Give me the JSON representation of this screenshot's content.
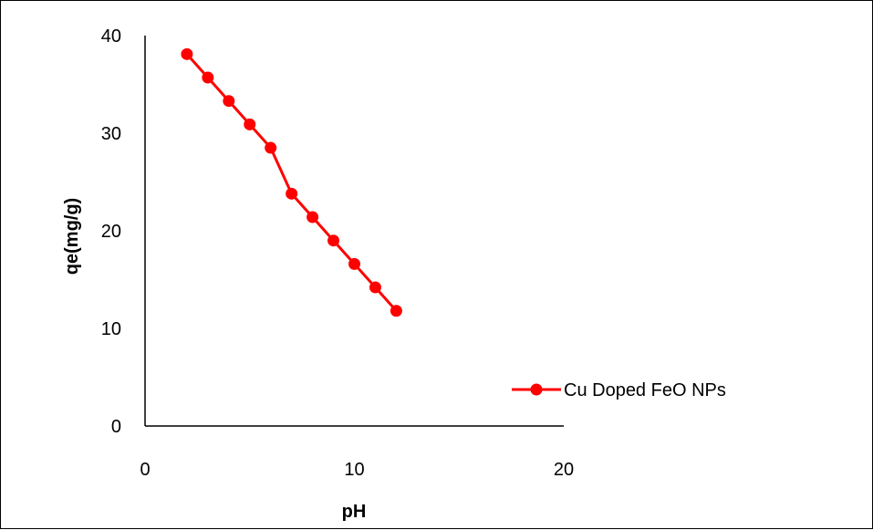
{
  "chart_data": {
    "type": "line",
    "title": "",
    "xlabel": "pH",
    "ylabel": "qe(mg/g)",
    "xlim": [
      0,
      20
    ],
    "ylim": [
      0,
      40
    ],
    "x_ticks": [
      "0",
      "10",
      "20"
    ],
    "y_ticks": [
      "0",
      "10",
      "20",
      "30",
      "40"
    ],
    "grid": false,
    "legend_position": "right",
    "series": [
      {
        "name": "Cu Doped FeO NPs",
        "color": "#ff0000",
        "marker": "circle",
        "x": [
          2,
          3,
          4,
          5,
          6,
          7,
          8,
          9,
          10,
          11,
          12
        ],
        "y": [
          38.1,
          35.7,
          33.3,
          30.9,
          28.5,
          23.8,
          21.4,
          19.0,
          16.6,
          14.2,
          11.8
        ]
      }
    ]
  }
}
